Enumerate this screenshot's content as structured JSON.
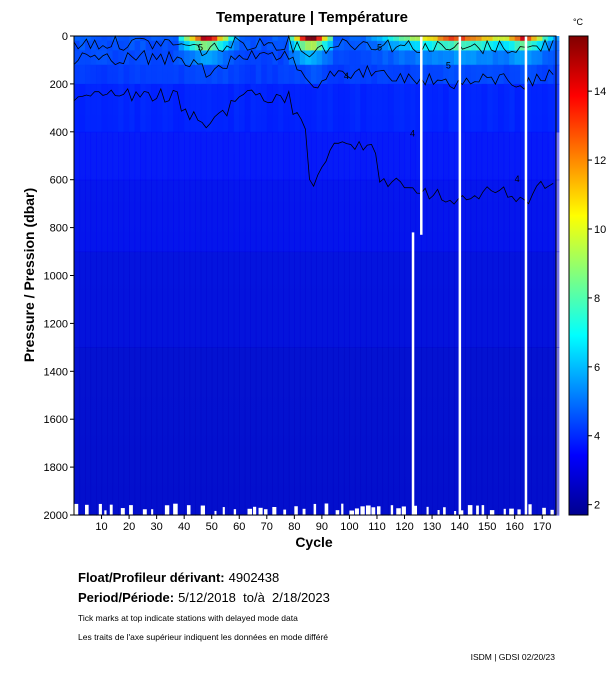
{
  "chart_data": {
    "type": "heatmap",
    "title": "Temperature | Température",
    "xlabel": "Cycle",
    "ylabel": "Pressure / Pression (dbar)",
    "xlim": [
      0,
      175
    ],
    "ylim": [
      2000,
      0
    ],
    "xticks": [
      10,
      20,
      30,
      40,
      50,
      60,
      70,
      80,
      90,
      100,
      110,
      120,
      130,
      140,
      150,
      160,
      170
    ],
    "yticks": [
      0,
      200,
      400,
      600,
      800,
      1000,
      1200,
      1400,
      1600,
      1800,
      2000
    ],
    "colorbar": {
      "unit": "°C",
      "min": 1.7,
      "max": 15.6,
      "ticks": [
        2,
        4,
        6,
        8,
        10,
        12,
        14
      ]
    },
    "contour_levels": [
      4,
      5
    ],
    "missing_cycles": [
      123,
      126,
      140,
      164
    ],
    "deep_values_degC": {
      "surface_max": 15,
      "at_400dbar": 4.5,
      "at_800dbar": 3.8,
      "at_2000dbar": 2.4
    }
  },
  "info": {
    "float_label": "Float/Profileur dérivant:",
    "float_value": "4902438",
    "period_label": "Period/Période:",
    "period_value": "5/12/2018  to/à  2/18/2023",
    "note_en": "Tick marks at top indicate stations with delayed mode data",
    "note_fr": "Les traits de l'axe supérieur indiquent les données en mode différé",
    "credit": "ISDM | GDSI  02/20/23"
  }
}
